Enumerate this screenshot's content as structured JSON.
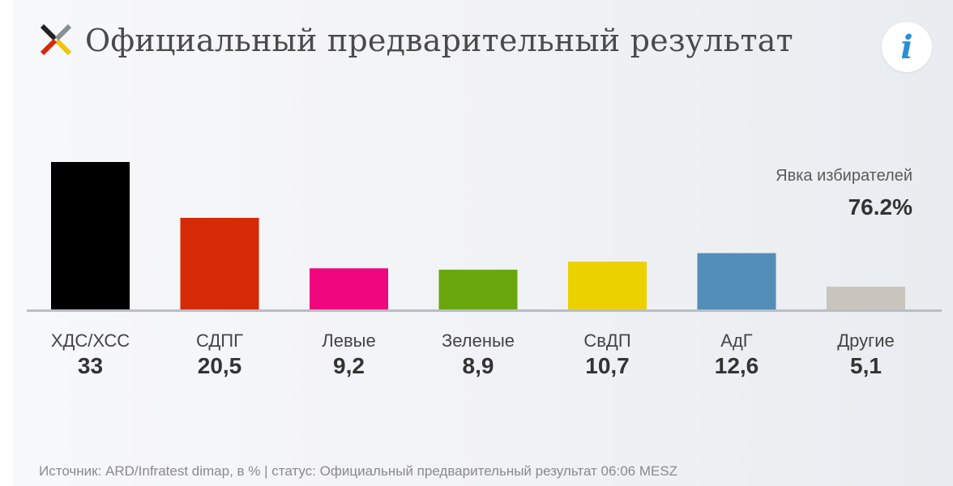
{
  "header": {
    "title": "Официальный предварительный результат",
    "info_icon": "info-icon",
    "logo_icon": "election-cross-icon"
  },
  "turnout": {
    "label": "Явка избирателей",
    "value": "76.2%"
  },
  "source_text": "Источник: ARD/Infratest dimap, в % | статус: Официальный предварительный результат 06:06 MESZ",
  "colors": {
    "baseline": "#b8bec6",
    "info_accent": "#2a8ed4"
  },
  "chart_data": {
    "type": "bar",
    "categories": [
      "ХДС/ХСС",
      "СДПГ",
      "Левые",
      "Зеленые",
      "СвДП",
      "АдГ",
      "Другие"
    ],
    "values": [
      33,
      20.5,
      9.2,
      8.9,
      10.7,
      12.6,
      5.1
    ],
    "value_labels": [
      "33",
      "20,5",
      "9,2",
      "8,9",
      "10,7",
      "12,6",
      "5,1"
    ],
    "colors": [
      "#000000",
      "#d42a05",
      "#f0067f",
      "#6aa70e",
      "#ecd100",
      "#528eb8",
      "#c9c4bc"
    ],
    "title": "",
    "xlabel": "",
    "ylabel": "",
    "ylim": [
      0,
      33
    ],
    "grid": false,
    "legend": "none"
  }
}
